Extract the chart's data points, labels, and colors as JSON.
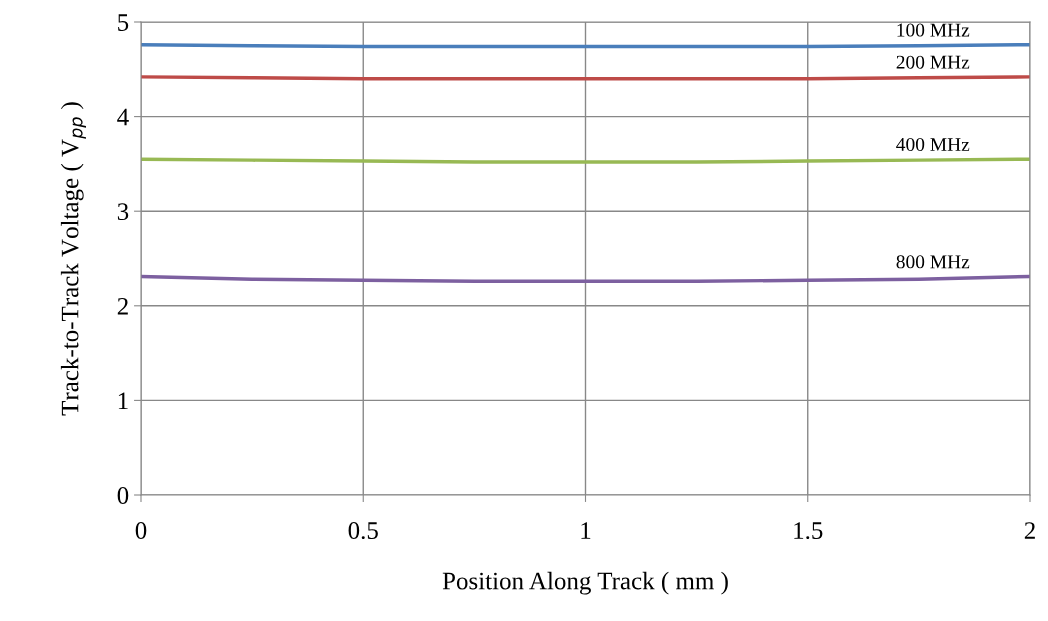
{
  "chart_data": {
    "type": "line",
    "xlabel": "Position Along Track ( mm )",
    "ylabel": "Track-to-Track Voltage ( V$_{pp}$ )",
    "xlim": [
      0,
      2
    ],
    "ylim": [
      0,
      5
    ],
    "xticks": [
      0,
      0.5,
      1,
      1.5,
      2
    ],
    "yticks": [
      0,
      1,
      2,
      3,
      4,
      5
    ],
    "grid": true,
    "legend": false,
    "marker": "none",
    "line_style": "solid",
    "series": [
      {
        "name": "100 MHz",
        "color": "#4a7ebb",
        "x": [
          0,
          0.25,
          0.5,
          0.75,
          1,
          1.25,
          1.5,
          1.75,
          2
        ],
        "values": [
          4.76,
          4.75,
          4.74,
          4.74,
          4.74,
          4.74,
          4.74,
          4.75,
          4.76
        ]
      },
      {
        "name": "200 MHz",
        "color": "#be4b48",
        "x": [
          0,
          0.25,
          0.5,
          0.75,
          1,
          1.25,
          1.5,
          1.75,
          2
        ],
        "values": [
          4.42,
          4.41,
          4.4,
          4.4,
          4.4,
          4.4,
          4.4,
          4.41,
          4.42
        ]
      },
      {
        "name": "400 MHz",
        "color": "#98b954",
        "x": [
          0,
          0.25,
          0.5,
          0.75,
          1,
          1.25,
          1.5,
          1.75,
          2
        ],
        "values": [
          3.55,
          3.54,
          3.53,
          3.52,
          3.52,
          3.52,
          3.53,
          3.54,
          3.55
        ]
      },
      {
        "name": "800 MHz",
        "color": "#7d60a0",
        "x": [
          0,
          0.25,
          0.5,
          0.75,
          1,
          1.25,
          1.5,
          1.75,
          2
        ],
        "values": [
          2.31,
          2.28,
          2.27,
          2.26,
          2.26,
          2.26,
          2.27,
          2.28,
          2.31
        ]
      }
    ]
  }
}
